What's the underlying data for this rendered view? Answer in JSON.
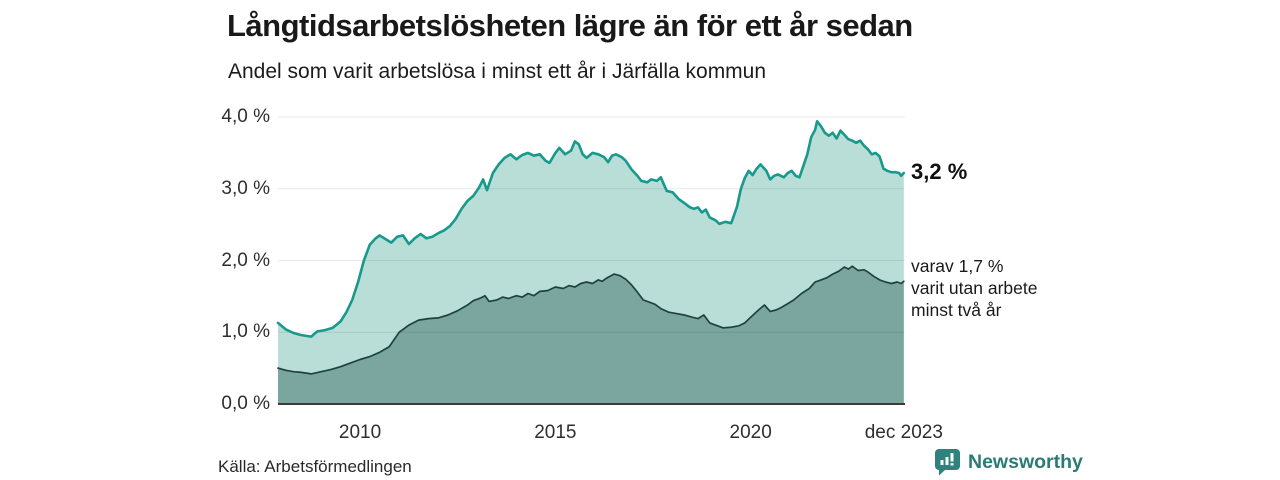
{
  "header": {
    "title": "Långtidsarbetslösheten lägre än för ett år sedan",
    "subtitle": "Andel som varit arbetslösa i minst ett år i Järfälla kommun"
  },
  "footer": {
    "source": "Källa: Arbetsförmedlingen",
    "brand": "Newsworthy",
    "brand_color": "#2b7c75"
  },
  "chart_data": {
    "type": "area",
    "title": "Långtidsarbetslösheten lägre än för ett år sedan",
    "subtitle": "Andel som varit arbetslösa i minst ett år i Järfälla kommun",
    "unit": "%",
    "x_domain": [
      2007.9,
      2023.95
    ],
    "y_domain": [
      0,
      4
    ],
    "grid": true,
    "y_ticks": [
      {
        "value": 0,
        "label": "0,0 %"
      },
      {
        "value": 1,
        "label": "1,0 %"
      },
      {
        "value": 2,
        "label": "2,0 %"
      },
      {
        "value": 3,
        "label": "3,0 %"
      },
      {
        "value": 4,
        "label": "4,0 %"
      }
    ],
    "x_ticks": [
      {
        "value": 2010,
        "label": "2010"
      },
      {
        "value": 2015,
        "label": "2015"
      },
      {
        "value": 2020,
        "label": "2020"
      },
      {
        "value": 2023.92,
        "label": "dec 2023"
      }
    ],
    "colors": {
      "total_line": "#17998b",
      "total_fill": "#b9ded8",
      "twoyear_line": "#1e433f",
      "twoyear_fill": "#7aa69f",
      "gridline": "rgba(0,0,0,0.09)",
      "axis": "#3b3b3b"
    },
    "series": [
      {
        "name": "arbetslösa minst ett år",
        "end_label": "3,2 %",
        "end_value": 3.2,
        "points": [
          [
            2007.9,
            1.13
          ],
          [
            2008.1,
            1.04
          ],
          [
            2008.3,
            0.99
          ],
          [
            2008.5,
            0.96
          ],
          [
            2008.75,
            0.94
          ],
          [
            2008.9,
            1.01
          ],
          [
            2009.1,
            1.03
          ],
          [
            2009.3,
            1.06
          ],
          [
            2009.5,
            1.15
          ],
          [
            2009.65,
            1.28
          ],
          [
            2009.8,
            1.45
          ],
          [
            2009.95,
            1.7
          ],
          [
            2010.1,
            2.0
          ],
          [
            2010.25,
            2.22
          ],
          [
            2010.4,
            2.31
          ],
          [
            2010.5,
            2.35
          ],
          [
            2010.65,
            2.3
          ],
          [
            2010.8,
            2.25
          ],
          [
            2010.95,
            2.33
          ],
          [
            2011.1,
            2.35
          ],
          [
            2011.25,
            2.23
          ],
          [
            2011.4,
            2.31
          ],
          [
            2011.55,
            2.37
          ],
          [
            2011.7,
            2.31
          ],
          [
            2011.85,
            2.33
          ],
          [
            2012.0,
            2.38
          ],
          [
            2012.15,
            2.42
          ],
          [
            2012.3,
            2.48
          ],
          [
            2012.45,
            2.58
          ],
          [
            2012.6,
            2.72
          ],
          [
            2012.75,
            2.83
          ],
          [
            2012.9,
            2.9
          ],
          [
            2013.05,
            3.02
          ],
          [
            2013.15,
            3.13
          ],
          [
            2013.25,
            2.98
          ],
          [
            2013.4,
            3.22
          ],
          [
            2013.55,
            3.34
          ],
          [
            2013.7,
            3.43
          ],
          [
            2013.85,
            3.48
          ],
          [
            2014.0,
            3.41
          ],
          [
            2014.15,
            3.47
          ],
          [
            2014.3,
            3.5
          ],
          [
            2014.45,
            3.46
          ],
          [
            2014.6,
            3.48
          ],
          [
            2014.75,
            3.39
          ],
          [
            2014.85,
            3.36
          ],
          [
            2015.0,
            3.5
          ],
          [
            2015.1,
            3.57
          ],
          [
            2015.25,
            3.48
          ],
          [
            2015.4,
            3.53
          ],
          [
            2015.5,
            3.66
          ],
          [
            2015.6,
            3.62
          ],
          [
            2015.7,
            3.48
          ],
          [
            2015.8,
            3.43
          ],
          [
            2015.95,
            3.5
          ],
          [
            2016.1,
            3.48
          ],
          [
            2016.25,
            3.44
          ],
          [
            2016.35,
            3.37
          ],
          [
            2016.45,
            3.46
          ],
          [
            2016.55,
            3.48
          ],
          [
            2016.7,
            3.44
          ],
          [
            2016.8,
            3.39
          ],
          [
            2016.95,
            3.27
          ],
          [
            2017.1,
            3.18
          ],
          [
            2017.2,
            3.11
          ],
          [
            2017.35,
            3.09
          ],
          [
            2017.45,
            3.13
          ],
          [
            2017.6,
            3.11
          ],
          [
            2017.7,
            3.16
          ],
          [
            2017.85,
            2.97
          ],
          [
            2018.0,
            2.95
          ],
          [
            2018.15,
            2.86
          ],
          [
            2018.3,
            2.8
          ],
          [
            2018.45,
            2.74
          ],
          [
            2018.55,
            2.72
          ],
          [
            2018.65,
            2.74
          ],
          [
            2018.75,
            2.67
          ],
          [
            2018.85,
            2.71
          ],
          [
            2018.95,
            2.6
          ],
          [
            2019.1,
            2.56
          ],
          [
            2019.2,
            2.51
          ],
          [
            2019.35,
            2.54
          ],
          [
            2019.5,
            2.52
          ],
          [
            2019.65,
            2.75
          ],
          [
            2019.75,
            3.0
          ],
          [
            2019.85,
            3.15
          ],
          [
            2019.95,
            3.25
          ],
          [
            2020.05,
            3.19
          ],
          [
            2020.15,
            3.28
          ],
          [
            2020.25,
            3.34
          ],
          [
            2020.4,
            3.25
          ],
          [
            2020.5,
            3.13
          ],
          [
            2020.6,
            3.18
          ],
          [
            2020.7,
            3.2
          ],
          [
            2020.85,
            3.16
          ],
          [
            2020.95,
            3.22
          ],
          [
            2021.05,
            3.25
          ],
          [
            2021.15,
            3.18
          ],
          [
            2021.25,
            3.16
          ],
          [
            2021.35,
            3.32
          ],
          [
            2021.45,
            3.48
          ],
          [
            2021.55,
            3.72
          ],
          [
            2021.65,
            3.82
          ],
          [
            2021.7,
            3.94
          ],
          [
            2021.8,
            3.87
          ],
          [
            2021.9,
            3.78
          ],
          [
            2022.0,
            3.74
          ],
          [
            2022.1,
            3.78
          ],
          [
            2022.2,
            3.7
          ],
          [
            2022.3,
            3.81
          ],
          [
            2022.4,
            3.75
          ],
          [
            2022.5,
            3.69
          ],
          [
            2022.6,
            3.67
          ],
          [
            2022.7,
            3.64
          ],
          [
            2022.8,
            3.67
          ],
          [
            2022.9,
            3.6
          ],
          [
            2023.0,
            3.55
          ],
          [
            2023.1,
            3.48
          ],
          [
            2023.2,
            3.5
          ],
          [
            2023.3,
            3.45
          ],
          [
            2023.4,
            3.28
          ],
          [
            2023.5,
            3.25
          ],
          [
            2023.6,
            3.23
          ],
          [
            2023.7,
            3.23
          ],
          [
            2023.8,
            3.22
          ],
          [
            2023.85,
            3.18
          ],
          [
            2023.92,
            3.22
          ]
        ]
      },
      {
        "name": "varav utan arbete minst två år",
        "annotation_lines": [
          "varav 1,7 %",
          "varit utan arbete",
          "minst två år"
        ],
        "end_value": 1.7,
        "points": [
          [
            2007.9,
            0.5
          ],
          [
            2008.1,
            0.47
          ],
          [
            2008.3,
            0.45
          ],
          [
            2008.5,
            0.44
          ],
          [
            2008.75,
            0.42
          ],
          [
            2009.0,
            0.45
          ],
          [
            2009.25,
            0.48
          ],
          [
            2009.5,
            0.52
          ],
          [
            2009.75,
            0.57
          ],
          [
            2010.0,
            0.62
          ],
          [
            2010.25,
            0.66
          ],
          [
            2010.5,
            0.72
          ],
          [
            2010.75,
            0.8
          ],
          [
            2011.0,
            1.0
          ],
          [
            2011.25,
            1.1
          ],
          [
            2011.5,
            1.17
          ],
          [
            2011.75,
            1.19
          ],
          [
            2012.0,
            1.2
          ],
          [
            2012.25,
            1.24
          ],
          [
            2012.5,
            1.3
          ],
          [
            2012.75,
            1.38
          ],
          [
            2012.9,
            1.44
          ],
          [
            2013.1,
            1.48
          ],
          [
            2013.2,
            1.51
          ],
          [
            2013.3,
            1.43
          ],
          [
            2013.5,
            1.45
          ],
          [
            2013.65,
            1.49
          ],
          [
            2013.8,
            1.47
          ],
          [
            2014.0,
            1.51
          ],
          [
            2014.15,
            1.49
          ],
          [
            2014.3,
            1.54
          ],
          [
            2014.45,
            1.51
          ],
          [
            2014.6,
            1.57
          ],
          [
            2014.8,
            1.58
          ],
          [
            2015.0,
            1.63
          ],
          [
            2015.2,
            1.61
          ],
          [
            2015.35,
            1.65
          ],
          [
            2015.5,
            1.63
          ],
          [
            2015.65,
            1.68
          ],
          [
            2015.8,
            1.7
          ],
          [
            2015.95,
            1.68
          ],
          [
            2016.1,
            1.73
          ],
          [
            2016.2,
            1.71
          ],
          [
            2016.3,
            1.75
          ],
          [
            2016.4,
            1.78
          ],
          [
            2016.5,
            1.81
          ],
          [
            2016.65,
            1.79
          ],
          [
            2016.8,
            1.74
          ],
          [
            2016.95,
            1.66
          ],
          [
            2017.1,
            1.56
          ],
          [
            2017.25,
            1.45
          ],
          [
            2017.4,
            1.42
          ],
          [
            2017.55,
            1.39
          ],
          [
            2017.7,
            1.33
          ],
          [
            2017.9,
            1.28
          ],
          [
            2018.1,
            1.26
          ],
          [
            2018.3,
            1.24
          ],
          [
            2018.5,
            1.21
          ],
          [
            2018.65,
            1.19
          ],
          [
            2018.8,
            1.24
          ],
          [
            2018.95,
            1.13
          ],
          [
            2019.1,
            1.1
          ],
          [
            2019.3,
            1.06
          ],
          [
            2019.5,
            1.07
          ],
          [
            2019.7,
            1.09
          ],
          [
            2019.85,
            1.13
          ],
          [
            2020.0,
            1.21
          ],
          [
            2020.2,
            1.31
          ],
          [
            2020.35,
            1.38
          ],
          [
            2020.5,
            1.29
          ],
          [
            2020.65,
            1.31
          ],
          [
            2020.8,
            1.35
          ],
          [
            2020.95,
            1.4
          ],
          [
            2021.1,
            1.45
          ],
          [
            2021.3,
            1.54
          ],
          [
            2021.5,
            1.61
          ],
          [
            2021.65,
            1.7
          ],
          [
            2021.8,
            1.73
          ],
          [
            2021.95,
            1.76
          ],
          [
            2022.1,
            1.81
          ],
          [
            2022.25,
            1.85
          ],
          [
            2022.4,
            1.91
          ],
          [
            2022.5,
            1.88
          ],
          [
            2022.6,
            1.92
          ],
          [
            2022.75,
            1.86
          ],
          [
            2022.9,
            1.87
          ],
          [
            2023.0,
            1.84
          ],
          [
            2023.15,
            1.78
          ],
          [
            2023.3,
            1.73
          ],
          [
            2023.45,
            1.7
          ],
          [
            2023.6,
            1.68
          ],
          [
            2023.75,
            1.7
          ],
          [
            2023.85,
            1.68
          ],
          [
            2023.92,
            1.71
          ]
        ]
      }
    ]
  }
}
